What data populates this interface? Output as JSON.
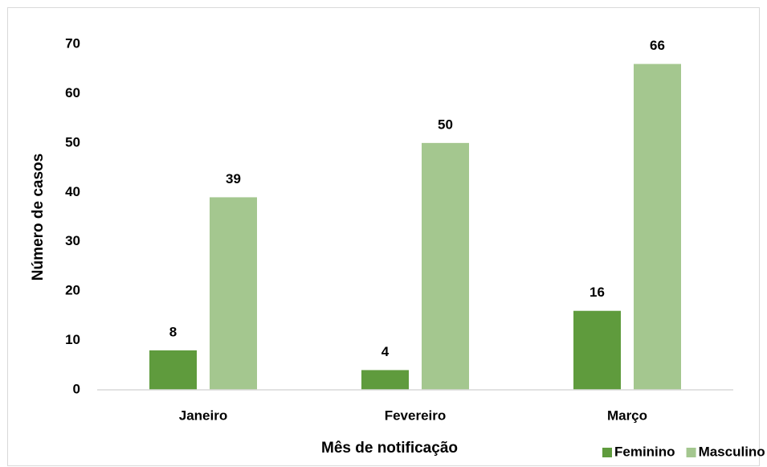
{
  "chart_data": {
    "type": "bar",
    "x_label": "Mês de notificação",
    "y_label": "Número de casos",
    "categories": [
      "Janeiro",
      "Fevereiro",
      "Março"
    ],
    "series": [
      {
        "name": "Feminino",
        "color": "#5f9b3d",
        "values": [
          8,
          4,
          16
        ]
      },
      {
        "name": "Masculino",
        "color": "#a4c78f",
        "values": [
          39,
          50,
          66
        ]
      }
    ],
    "ylim": [
      0,
      70
    ],
    "yticks": [
      0,
      10,
      20,
      30,
      40,
      50,
      60,
      70
    ],
    "grid": false,
    "legend": "bottom-right"
  }
}
